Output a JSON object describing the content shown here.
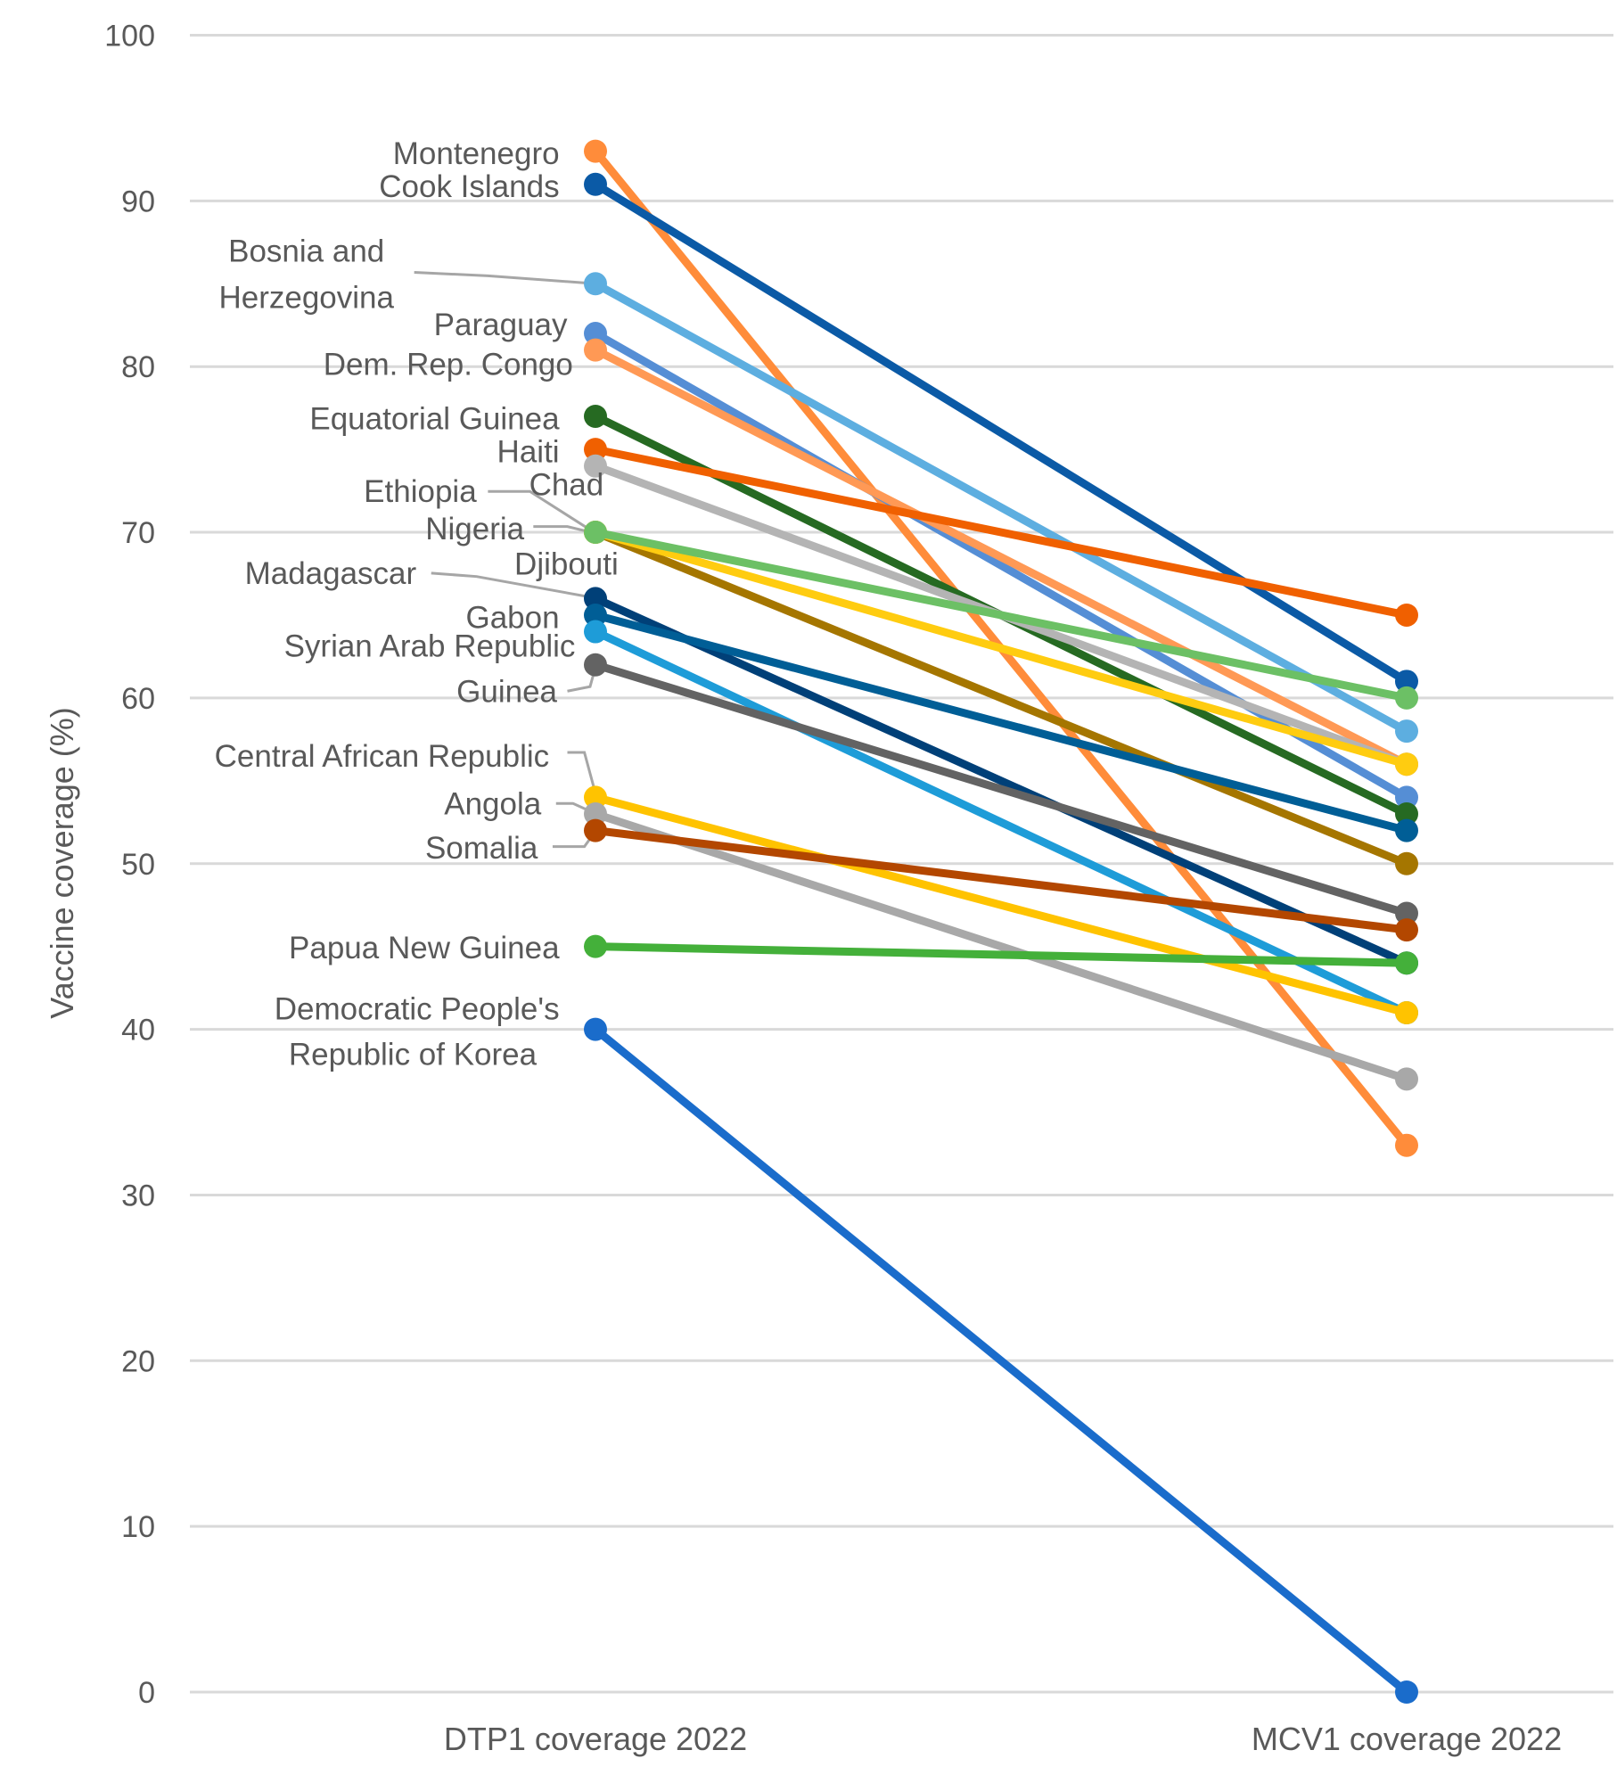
{
  "chart_data": {
    "type": "line",
    "title": "",
    "xlabel": "",
    "ylabel": "Vaccine coverage (%)",
    "categories": [
      "DTP1 coverage 2022",
      "MCV1 coverage 2022"
    ],
    "ylim": [
      0,
      100
    ],
    "yticks": [
      0,
      10,
      20,
      30,
      40,
      50,
      60,
      70,
      80,
      90,
      100
    ],
    "grid": true,
    "legend": "none; series labeled directly at left points",
    "series": [
      {
        "name": "Montenegro",
        "values": [
          93,
          33
        ],
        "color": "#FF8C3A"
      },
      {
        "name": "Cook Islands",
        "values": [
          91,
          61
        ],
        "color": "#0B5AA6"
      },
      {
        "name": "Bosnia and Herzegovina",
        "values": [
          85,
          58
        ],
        "color": "#5DAEE0"
      },
      {
        "name": "Paraguay",
        "values": [
          82,
          54
        ],
        "color": "#558ED5"
      },
      {
        "name": "Dem. Rep. Congo",
        "values": [
          81,
          56
        ],
        "color": "#FF9955"
      },
      {
        "name": "Equatorial Guinea",
        "values": [
          77,
          53
        ],
        "color": "#266A22"
      },
      {
        "name": "Haiti",
        "values": [
          75,
          65
        ],
        "color": "#F06000"
      },
      {
        "name": "Chad",
        "values": [
          74,
          56
        ],
        "color": "#B4B4B4"
      },
      {
        "name": "Ethiopia",
        "values": [
          70,
          50
        ],
        "color": "#A57600"
      },
      {
        "name": "Djibouti",
        "values": [
          70,
          56
        ],
        "color": "#FFCC10"
      },
      {
        "name": "Nigeria",
        "values": [
          70,
          60
        ],
        "color": "#6CC065"
      },
      {
        "name": "Madagascar",
        "values": [
          66,
          44
        ],
        "color": "#004078"
      },
      {
        "name": "Gabon",
        "values": [
          65,
          52
        ],
        "color": "#005E96"
      },
      {
        "name": "Syrian Arab Republic",
        "values": [
          64,
          41
        ],
        "color": "#1E9CD8"
      },
      {
        "name": "Guinea",
        "values": [
          62,
          47
        ],
        "color": "#636363"
      },
      {
        "name": "Central African Republic",
        "values": [
          54,
          41
        ],
        "color": "#FFC300"
      },
      {
        "name": "Angola",
        "values": [
          53,
          37
        ],
        "color": "#A8A8A8"
      },
      {
        "name": "Somalia",
        "values": [
          52,
          46
        ],
        "color": "#B34700"
      },
      {
        "name": "Papua New Guinea",
        "values": [
          45,
          44
        ],
        "color": "#44B03A"
      },
      {
        "name": "Democratic People's Republic of Korea",
        "values": [
          40,
          0
        ],
        "color": "#1A6CCB"
      }
    ],
    "label_lines": {
      "Bosnia and Herzegovina": [
        "Bosnia and",
        "Herzegovina"
      ],
      "Democratic People's Republic of Korea": [
        "Democratic People's",
        "Republic of Korea"
      ]
    }
  }
}
